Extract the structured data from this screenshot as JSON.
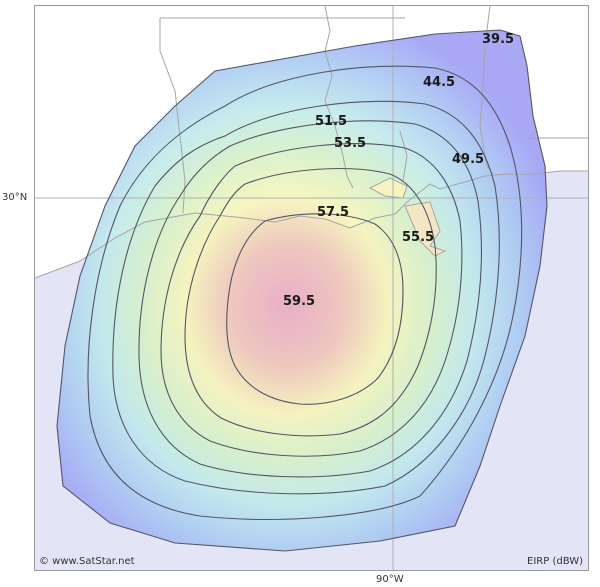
{
  "map": {
    "latitude_label": "30°N",
    "longitude_label": "90°W",
    "copyright": "© www.SatStar.net",
    "legend_label": "EIRP (dBW)",
    "contours": [
      {
        "value": 39.5,
        "label": "39.5"
      },
      {
        "value": 44.5,
        "label": "44.5"
      },
      {
        "value": 49.5,
        "label": "49.5"
      },
      {
        "value": 51.5,
        "label": "51.5"
      },
      {
        "value": 53.5,
        "label": "53.5"
      },
      {
        "value": 55.5,
        "label": "55.5"
      },
      {
        "value": 57.5,
        "label": "57.5"
      },
      {
        "value": 59.5,
        "label": "59.5"
      }
    ],
    "colors": {
      "gulf_water": "#e4e4f7",
      "outer_beam": "#9f9ff4",
      "mid_beam": "#bfe9ec",
      "inner_beam": "#f6f5b9",
      "peak_beam": "#e9a9c4",
      "contour_line": "#555566",
      "boundary_line": "#a5a5a5"
    }
  }
}
